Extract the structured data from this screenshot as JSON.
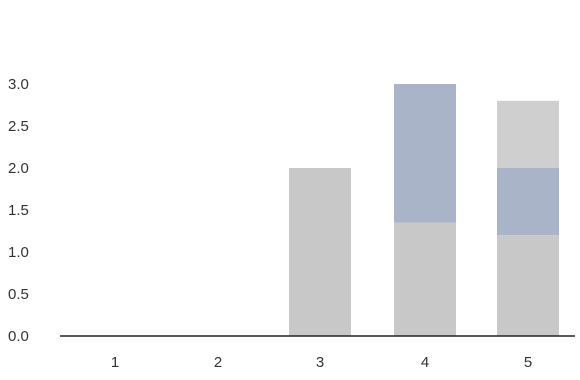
{
  "chart_data": {
    "type": "bar",
    "stacked": true,
    "categories": [
      "1",
      "2",
      "3",
      "4",
      "5"
    ],
    "series": [
      {
        "values": [
          0,
          0,
          2.0,
          1.35,
          1.2
        ],
        "color": "#c8c8c8"
      },
      {
        "values": [
          0,
          0,
          0,
          1.65,
          0.8
        ],
        "color": "#aab4c8"
      },
      {
        "values": [
          0,
          0,
          0,
          0,
          0.8
        ],
        "color": "#cfcfcf"
      }
    ],
    "y_ticks": [
      "0.0",
      "0.5",
      "1.0",
      "1.5",
      "2.0",
      "2.5",
      "3.0"
    ],
    "ylim": [
      0,
      3.0
    ],
    "grid": false,
    "title": "",
    "xlabel": "",
    "ylabel": ""
  }
}
